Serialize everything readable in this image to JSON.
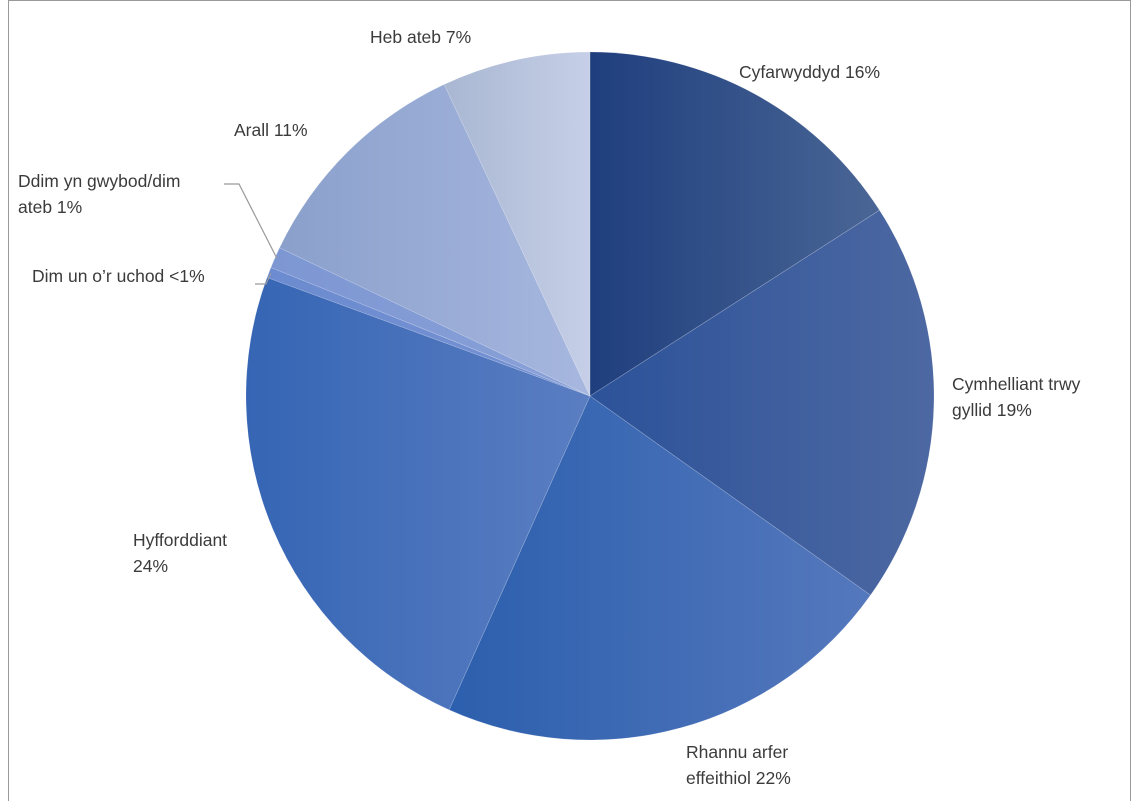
{
  "chart_data": {
    "type": "pie",
    "title": "",
    "start_angle_deg": 0,
    "direction": "clockwise",
    "slices": [
      {
        "label_lines": [
          "Cyfarwyddyd 16%"
        ],
        "category": "Cyfarwyddyd",
        "value": 16,
        "color_from": "#1f3e7d",
        "color_to": "#4a6696"
      },
      {
        "label_lines": [
          "Cymhelliant trwy",
          "gyllid 19%"
        ],
        "category": "Cymhelliant trwy gyllid",
        "value": 19,
        "color_from": "#2c5299",
        "color_to": "#4d68a2"
      },
      {
        "label_lines": [
          "Rhannu arfer",
          "effeithiol 22%"
        ],
        "category": "Rhannu arfer effeithiol",
        "value": 22,
        "color_from": "#2c5fad",
        "color_to": "#5578bd"
      },
      {
        "label_lines": [
          "Hyfforddiant",
          "24%"
        ],
        "category": "Hyfforddiant",
        "value": 24,
        "color_from": "#3565b4",
        "color_to": "#5b7ec2"
      },
      {
        "label_lines": [
          "Dim un o’r uchod <1%"
        ],
        "category": "Dim un o’r uchod",
        "value": 0.5,
        "color_from": "#6c8bd0",
        "color_to": "#7592d2"
      },
      {
        "label_lines": [
          "Ddim yn gwybod/dim",
          "ateb 1%"
        ],
        "category": "Ddim yn gwybod/dim ateb",
        "value": 1,
        "color_from": "#7d97d3",
        "color_to": "#8aa1d8"
      },
      {
        "label_lines": [
          "Arall 11%"
        ],
        "category": "Arall",
        "value": 11,
        "color_from": "#8aa0cb",
        "color_to": "#a7b7df"
      },
      {
        "label_lines": [
          "Heb ateb 7%"
        ],
        "category": "Heb ateb",
        "value": 7,
        "color_from": "#a9b7d2",
        "color_to": "#c6cfe7"
      }
    ]
  }
}
